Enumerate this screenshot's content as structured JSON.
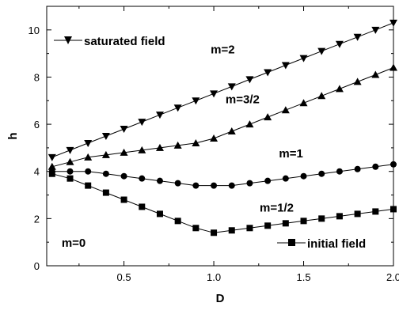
{
  "chart_data": {
    "type": "line",
    "xlabel": "D",
    "ylabel": "h",
    "xlim": [
      0.07,
      2.0
    ],
    "ylim": [
      0,
      11
    ],
    "xticks": [
      0.5,
      1.0,
      1.5,
      2.0
    ],
    "xtick_labels": [
      "0.5",
      "1.0",
      "1.5",
      "2.0"
    ],
    "yticks": [
      0,
      2,
      4,
      6,
      8,
      10
    ],
    "ytick_labels": [
      "0",
      "2",
      "4",
      "6",
      "8",
      "10"
    ],
    "grid": false,
    "color": "#000000",
    "series": [
      {
        "name": "saturated field",
        "in_legend": true,
        "marker": "triangle-down",
        "x": [
          0.1,
          0.2,
          0.3,
          0.4,
          0.5,
          0.6,
          0.7,
          0.8,
          0.9,
          1.0,
          1.1,
          1.2,
          1.3,
          1.4,
          1.5,
          1.6,
          1.7,
          1.8,
          1.9,
          2.0
        ],
        "y": [
          4.6,
          4.9,
          5.2,
          5.5,
          5.8,
          6.1,
          6.4,
          6.7,
          7.0,
          7.3,
          7.6,
          7.9,
          8.2,
          8.5,
          8.8,
          9.1,
          9.4,
          9.7,
          10.0,
          10.3
        ]
      },
      {
        "name": "",
        "in_legend": false,
        "marker": "triangle-up",
        "x": [
          0.1,
          0.2,
          0.3,
          0.4,
          0.5,
          0.6,
          0.7,
          0.8,
          0.9,
          1.0,
          1.1,
          1.2,
          1.3,
          1.4,
          1.5,
          1.6,
          1.7,
          1.8,
          1.9,
          2.0
        ],
        "y": [
          4.2,
          4.4,
          4.6,
          4.7,
          4.8,
          4.9,
          5.0,
          5.1,
          5.2,
          5.4,
          5.7,
          6.0,
          6.3,
          6.6,
          6.9,
          7.2,
          7.5,
          7.8,
          8.1,
          8.4
        ]
      },
      {
        "name": "",
        "in_legend": false,
        "marker": "circle",
        "x": [
          0.1,
          0.2,
          0.3,
          0.4,
          0.5,
          0.6,
          0.7,
          0.8,
          0.9,
          1.0,
          1.1,
          1.2,
          1.3,
          1.4,
          1.5,
          1.6,
          1.7,
          1.8,
          1.9,
          2.0
        ],
        "y": [
          4.0,
          4.0,
          4.0,
          3.9,
          3.8,
          3.7,
          3.6,
          3.5,
          3.4,
          3.4,
          3.4,
          3.5,
          3.6,
          3.7,
          3.8,
          3.9,
          4.0,
          4.1,
          4.2,
          4.3
        ]
      },
      {
        "name": "initial field",
        "in_legend": true,
        "marker": "square",
        "x": [
          0.1,
          0.2,
          0.3,
          0.4,
          0.5,
          0.6,
          0.7,
          0.8,
          0.9,
          1.0,
          1.1,
          1.2,
          1.3,
          1.4,
          1.5,
          1.6,
          1.7,
          1.8,
          1.9,
          2.0
        ],
        "y": [
          3.9,
          3.7,
          3.4,
          3.1,
          2.8,
          2.5,
          2.2,
          1.9,
          1.6,
          1.4,
          1.5,
          1.6,
          1.7,
          1.8,
          1.9,
          2.0,
          2.1,
          2.2,
          2.3,
          2.4
        ]
      }
    ],
    "annotations": [
      {
        "text": "m=2",
        "x": 1.05,
        "y": 9.0
      },
      {
        "text": "m=3/2",
        "x": 1.16,
        "y": 6.9
      },
      {
        "text": "m=1",
        "x": 1.43,
        "y": 4.6
      },
      {
        "text": "m=1/2",
        "x": 1.35,
        "y": 2.3
      },
      {
        "text": "m=0",
        "x": 0.22,
        "y": 0.8
      }
    ],
    "legend": {
      "entries": [
        "saturated field",
        "initial field"
      ],
      "placement": "split: top-left (saturated field), bottom-right (initial field)"
    }
  }
}
